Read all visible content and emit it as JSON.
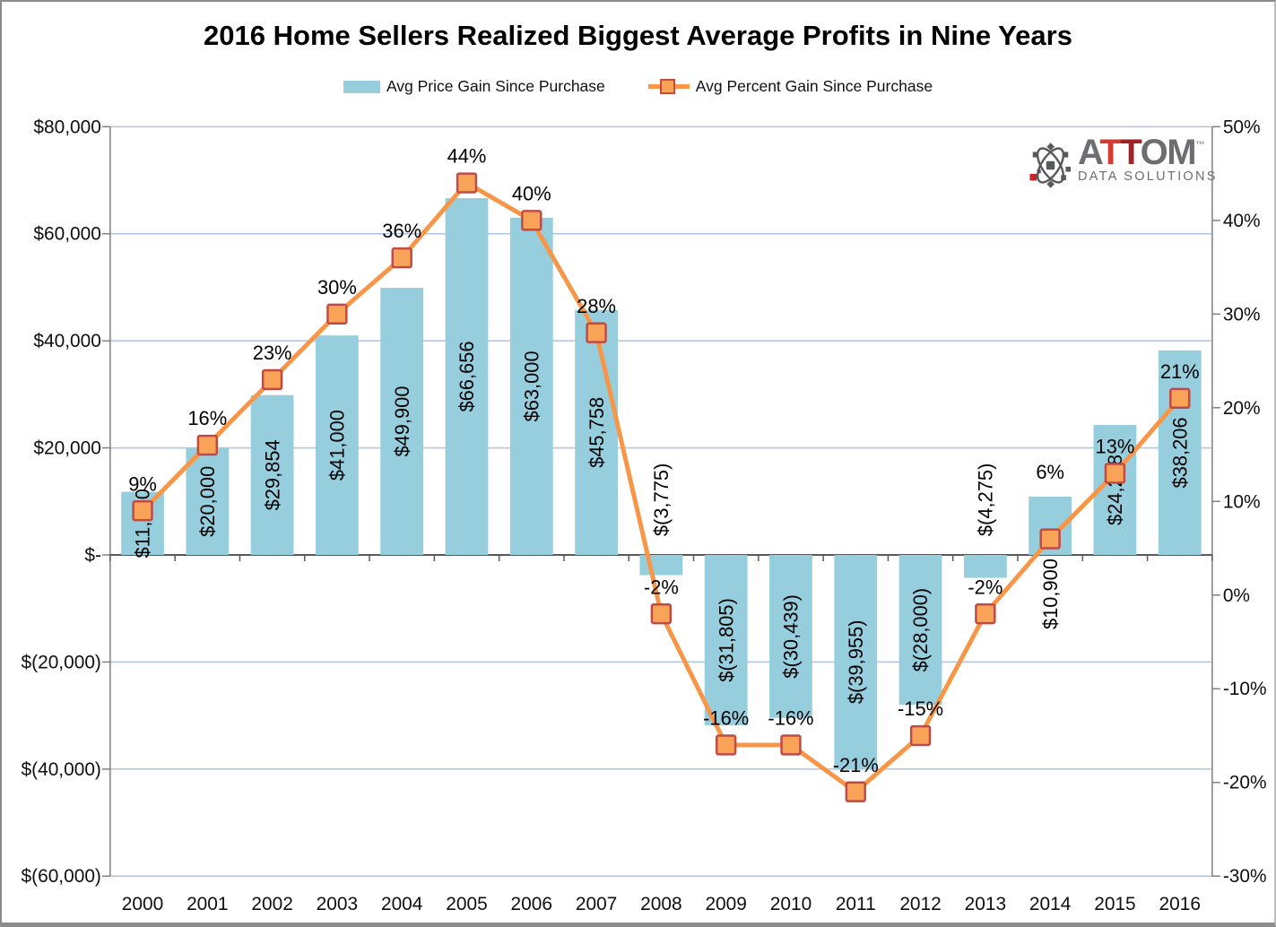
{
  "title": "2016 Home Sellers Realized Biggest Average Profits in Nine Years",
  "legend": [
    {
      "label": "Avg Price Gain Since Purchase",
      "swatch_color": "#96CEDE"
    },
    {
      "label": "Avg Percent Gain Since Purchase",
      "line_color": "#F79646",
      "marker_fill": "#F9A358",
      "marker_stroke": "#BE4B48"
    }
  ],
  "logo": {
    "brand_prefix": "A",
    "brand_t1": "T",
    "brand_t2": "T",
    "brand_suffix": "OM",
    "tm": "™",
    "tagline": "DATA SOLUTIONS",
    "gray": "#6D6E71",
    "red": "#C1272D"
  },
  "chart_data": {
    "type": "combo",
    "categories": [
      "2000",
      "2001",
      "2002",
      "2003",
      "2004",
      "2005",
      "2006",
      "2007",
      "2008",
      "2009",
      "2010",
      "2011",
      "2012",
      "2013",
      "2014",
      "2015",
      "2016"
    ],
    "series": [
      {
        "name": "Avg Price Gain Since Purchase",
        "type": "bar",
        "color": "#96CEDE",
        "values": [
          11800,
          20000,
          29854,
          41000,
          49900,
          66656,
          63000,
          45758,
          -3775,
          -31805,
          -30439,
          -39955,
          -28000,
          -4275,
          10900,
          24288,
          38206
        ],
        "labels": [
          "$11,800",
          "$20,000",
          "$29,854",
          "$41,000",
          "$49,900",
          "$66,656",
          "$63,000",
          "$45,758",
          "$(3,775)",
          "$(31,805)",
          "$(30,439)",
          "$(39,955)",
          "$(28,000)",
          "$(4,275)",
          "$10,900",
          "$24,288",
          "$38,206"
        ],
        "label_pos": [
          "center",
          "center",
          "center",
          "center",
          "center",
          "center",
          "center",
          "center",
          "above-axis",
          "center",
          "center",
          "center",
          "center",
          "above-axis",
          "below-axis",
          "center",
          "center"
        ]
      },
      {
        "name": "Avg Percent Gain Since Purchase",
        "type": "line",
        "color": "#F79646",
        "marker_fill": "#F9A358",
        "marker_stroke": "#BE4B48",
        "values": [
          9,
          16,
          23,
          30,
          36,
          44,
          40,
          28,
          -2,
          -16,
          -16,
          -21,
          -15,
          -2,
          6,
          13,
          21
        ],
        "labels": [
          "9%",
          "16%",
          "23%",
          "30%",
          "36%",
          "44%",
          "40%",
          "28%",
          "-2%",
          "-16%",
          "-16%",
          "-21%",
          "-15%",
          "-2%",
          "6%",
          "13%",
          "21%"
        ],
        "label_dy": [
          -30,
          -30,
          -30,
          -30,
          -30,
          -30,
          -30,
          -30,
          -30,
          -30,
          -30,
          -30,
          -30,
          -30,
          -75,
          -30,
          -30
        ]
      }
    ],
    "left_axis": {
      "ticks": [
        "$80,000",
        "$60,000",
        "$40,000",
        "$20,000",
        "$-",
        "$(20,000)",
        "$(40,000)",
        "$(60,000)"
      ],
      "max": 80000,
      "min": -60000,
      "step": 20000
    },
    "right_axis": {
      "ticks": [
        "50%",
        "40%",
        "30%",
        "20%",
        "10%",
        "0%",
        "-10%",
        "-20%",
        "-30%"
      ],
      "max": 50,
      "min": -30,
      "step": 10
    },
    "grid": true,
    "gridline_color": "#AEC3E2",
    "axis_line_color": "#808080",
    "zero_line_color": "#595959",
    "legend_position": "top"
  }
}
